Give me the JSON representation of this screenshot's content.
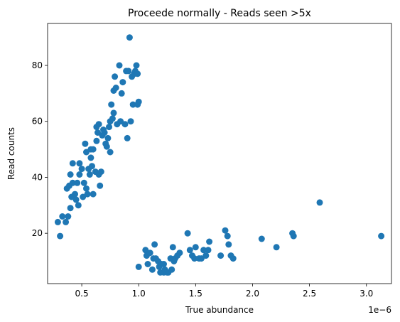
{
  "chart_data": {
    "type": "scatter",
    "title": "Proceede normally - Reads seen >5x",
    "xlabel": "True abundance",
    "ylabel": "Read counts",
    "x_scale_label": "1e−6",
    "xlim": [
      0.2,
      3.22
    ],
    "ylim": [
      2,
      95
    ],
    "x_ticks": [
      0.5,
      1.0,
      1.5,
      2.0,
      2.5,
      3.0
    ],
    "x_tick_labels": [
      "0.5",
      "1.0",
      "1.5",
      "2.0",
      "2.5",
      "3.0"
    ],
    "y_ticks": [
      20,
      40,
      60,
      80
    ],
    "y_tick_labels": [
      "20",
      "40",
      "60",
      "80"
    ],
    "grid": false,
    "marker_color": "#1f77b4",
    "points": [
      [
        0.29,
        24
      ],
      [
        0.31,
        19
      ],
      [
        0.33,
        26
      ],
      [
        0.36,
        24
      ],
      [
        0.37,
        36
      ],
      [
        0.38,
        26
      ],
      [
        0.39,
        37
      ],
      [
        0.4,
        29
      ],
      [
        0.4,
        41
      ],
      [
        0.41,
        33
      ],
      [
        0.42,
        38
      ],
      [
        0.42,
        45
      ],
      [
        0.44,
        34
      ],
      [
        0.45,
        32
      ],
      [
        0.46,
        38
      ],
      [
        0.47,
        30
      ],
      [
        0.48,
        45
      ],
      [
        0.48,
        41
      ],
      [
        0.5,
        43
      ],
      [
        0.51,
        33
      ],
      [
        0.52,
        38
      ],
      [
        0.53,
        52
      ],
      [
        0.54,
        49
      ],
      [
        0.54,
        36
      ],
      [
        0.55,
        34
      ],
      [
        0.56,
        43
      ],
      [
        0.57,
        41
      ],
      [
        0.58,
        47
      ],
      [
        0.58,
        50
      ],
      [
        0.59,
        44
      ],
      [
        0.6,
        34
      ],
      [
        0.6,
        50
      ],
      [
        0.62,
        42
      ],
      [
        0.63,
        53
      ],
      [
        0.63,
        58
      ],
      [
        0.64,
        56
      ],
      [
        0.65,
        59
      ],
      [
        0.65,
        41
      ],
      [
        0.66,
        37
      ],
      [
        0.67,
        42
      ],
      [
        0.68,
        55
      ],
      [
        0.69,
        57
      ],
      [
        0.7,
        56
      ],
      [
        0.71,
        52
      ],
      [
        0.72,
        51
      ],
      [
        0.73,
        54
      ],
      [
        0.74,
        58
      ],
      [
        0.75,
        60
      ],
      [
        0.75,
        49
      ],
      [
        0.76,
        66
      ],
      [
        0.77,
        61
      ],
      [
        0.78,
        63
      ],
      [
        0.78,
        71
      ],
      [
        0.79,
        76
      ],
      [
        0.8,
        72
      ],
      [
        0.81,
        59
      ],
      [
        0.83,
        80
      ],
      [
        0.84,
        60
      ],
      [
        0.85,
        70
      ],
      [
        0.86,
        74
      ],
      [
        0.88,
        59
      ],
      [
        0.89,
        78
      ],
      [
        0.9,
        54
      ],
      [
        0.91,
        78
      ],
      [
        0.92,
        90
      ],
      [
        0.93,
        60
      ],
      [
        0.94,
        76
      ],
      [
        0.95,
        66
      ],
      [
        0.96,
        77
      ],
      [
        0.97,
        78
      ],
      [
        0.98,
        80
      ],
      [
        0.99,
        77
      ],
      [
        0.99,
        66
      ],
      [
        1.0,
        67
      ],
      [
        1.0,
        8
      ],
      [
        1.06,
        14
      ],
      [
        1.07,
        12
      ],
      [
        1.08,
        9
      ],
      [
        1.1,
        13
      ],
      [
        1.12,
        7
      ],
      [
        1.13,
        11
      ],
      [
        1.14,
        16
      ],
      [
        1.15,
        11
      ],
      [
        1.17,
        10
      ],
      [
        1.18,
        8
      ],
      [
        1.19,
        6
      ],
      [
        1.2,
        9
      ],
      [
        1.22,
        9
      ],
      [
        1.22,
        6
      ],
      [
        1.23,
        7
      ],
      [
        1.25,
        6
      ],
      [
        1.26,
        6
      ],
      [
        1.28,
        11
      ],
      [
        1.29,
        7
      ],
      [
        1.3,
        15
      ],
      [
        1.31,
        10
      ],
      [
        1.32,
        11
      ],
      [
        1.34,
        12
      ],
      [
        1.36,
        13
      ],
      [
        1.43,
        20
      ],
      [
        1.45,
        14
      ],
      [
        1.47,
        12
      ],
      [
        1.49,
        11
      ],
      [
        1.5,
        15
      ],
      [
        1.53,
        11
      ],
      [
        1.55,
        11
      ],
      [
        1.57,
        14
      ],
      [
        1.59,
        12
      ],
      [
        1.61,
        14
      ],
      [
        1.62,
        17
      ],
      [
        1.72,
        12
      ],
      [
        1.76,
        21
      ],
      [
        1.78,
        19
      ],
      [
        1.79,
        16
      ],
      [
        1.81,
        12
      ],
      [
        1.83,
        11
      ],
      [
        2.08,
        18
      ],
      [
        2.21,
        15
      ],
      [
        2.35,
        20
      ],
      [
        2.36,
        19
      ],
      [
        2.59,
        31
      ],
      [
        3.13,
        19
      ]
    ]
  }
}
